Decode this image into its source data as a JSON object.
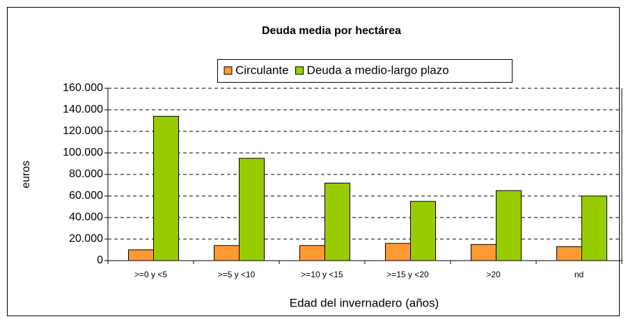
{
  "chart_data": {
    "type": "bar",
    "title": "Deuda media por hectárea",
    "x_label": "Edad del invernadero (años)",
    "y_label": "euros",
    "categories": [
      ">=0 y <5",
      ">=5 y <10",
      ">=10 y <15",
      ">=15 y <20",
      ">20",
      "nd"
    ],
    "series": [
      {
        "name": "Circulante",
        "color": "#ff9933",
        "values": [
          10000,
          14000,
          14000,
          16000,
          15000,
          13000
        ]
      },
      {
        "name": "Deuda a medio-largo plazo",
        "color": "#99cc00",
        "values": [
          134000,
          95000,
          72000,
          55000,
          65000,
          60000
        ]
      }
    ],
    "ylim": [
      0,
      160000
    ],
    "yticks": [
      0,
      {
        "value": 20000,
        "label": "20.000"
      },
      {
        "value": 40000,
        "label": "40.000"
      },
      {
        "value": 60000,
        "label": "60.000"
      },
      {
        "value": 80000,
        "label": "80.000"
      },
      {
        "value": 100000,
        "label": "100.000"
      },
      {
        "value": 120000,
        "label": "120.000"
      },
      {
        "value": 140000,
        "label": "140.000"
      },
      {
        "value": 160000,
        "label": "160.000"
      }
    ],
    "grid": true,
    "legend": "top"
  }
}
